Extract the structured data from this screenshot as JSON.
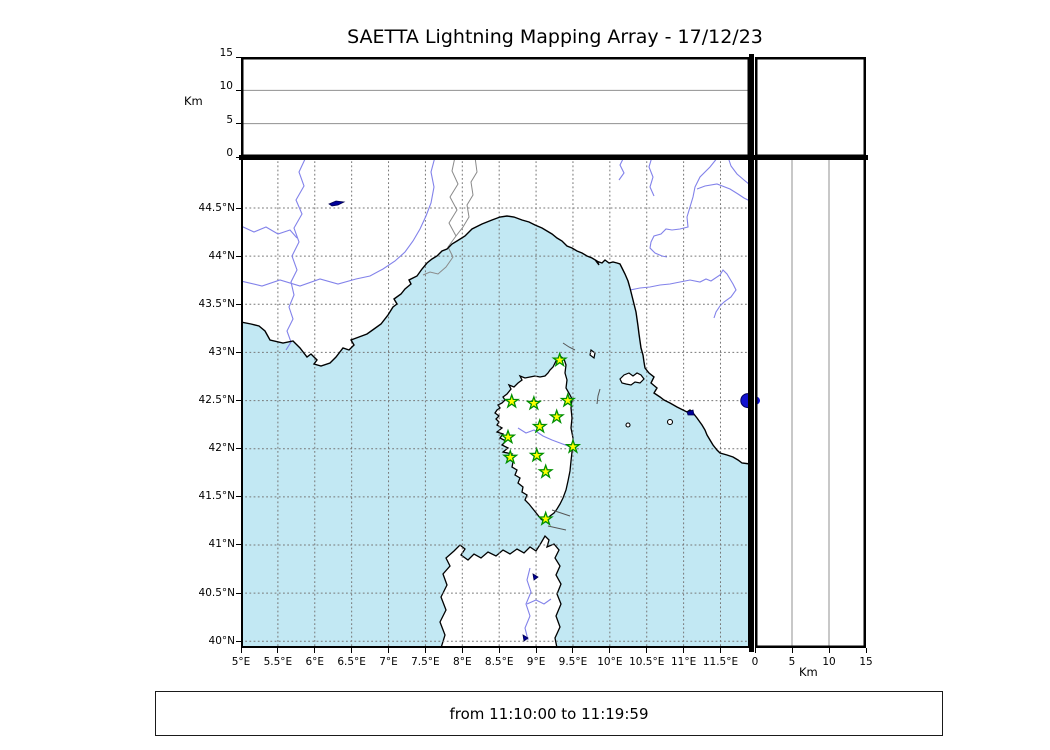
{
  "title": "SAETTA Lightning Mapping Array - 17/12/23",
  "status_bar": {
    "text": "from 11:10:00 to 11:19:59"
  },
  "chart_data": {
    "type": "map",
    "title": "SAETTA Lightning Mapping Array - 17/12/23",
    "description_visible": "Lightning mapping array display: plan map of Corsica region with station markers, altitude-vs-longitude panel on top, altitude-vs-latitude panel on right",
    "map_panel": {
      "lon_range": [
        5.0,
        11.9
      ],
      "lat_range": [
        39.93,
        45.03
      ],
      "grid_step_deg": 0.5,
      "lon_ticks": [
        {
          "v": 5.0,
          "label": "5°E"
        },
        {
          "v": 5.5,
          "label": "5.5°E"
        },
        {
          "v": 6.0,
          "label": "6°E"
        },
        {
          "v": 6.5,
          "label": "6.5°E"
        },
        {
          "v": 7.0,
          "label": "7°E"
        },
        {
          "v": 7.5,
          "label": "7.5°E"
        },
        {
          "v": 8.0,
          "label": "8°E"
        },
        {
          "v": 8.5,
          "label": "8.5°E"
        },
        {
          "v": 9.0,
          "label": "9°E"
        },
        {
          "v": 9.5,
          "label": "9.5°E"
        },
        {
          "v": 10.0,
          "label": "10°E"
        },
        {
          "v": 10.5,
          "label": "10.5°E"
        },
        {
          "v": 11.0,
          "label": "11°E"
        },
        {
          "v": 11.5,
          "label": "11.5°E"
        }
      ],
      "lat_ticks": [
        {
          "v": 44.5,
          "label": "44.5°N"
        },
        {
          "v": 44.0,
          "label": "44°N"
        },
        {
          "v": 43.5,
          "label": "43.5°N"
        },
        {
          "v": 43.0,
          "label": "43°N"
        },
        {
          "v": 42.5,
          "label": "42.5°N"
        },
        {
          "v": 42.0,
          "label": "42°N"
        },
        {
          "v": 41.5,
          "label": "41.5°N"
        },
        {
          "v": 41.0,
          "label": "41°N"
        },
        {
          "v": 40.5,
          "label": "40.5°N"
        },
        {
          "v": 40.0,
          "label": "40°N"
        }
      ]
    },
    "altitude_axis": {
      "label": "Km",
      "range": [
        0,
        15
      ],
      "ticks": [
        0,
        5,
        10,
        15
      ],
      "gridlines": [
        5,
        10
      ]
    },
    "stations": {
      "marker": "star",
      "fill": "#ffff00",
      "edge": "#009000",
      "points": [
        {
          "lon": 9.32,
          "lat": 42.92
        },
        {
          "lon": 8.67,
          "lat": 42.49
        },
        {
          "lon": 8.97,
          "lat": 42.47
        },
        {
          "lon": 9.43,
          "lat": 42.5
        },
        {
          "lon": 9.28,
          "lat": 42.33
        },
        {
          "lon": 9.05,
          "lat": 42.23
        },
        {
          "lon": 8.62,
          "lat": 42.12
        },
        {
          "lon": 9.5,
          "lat": 42.02
        },
        {
          "lon": 8.65,
          "lat": 41.91
        },
        {
          "lon": 9.01,
          "lat": 41.93
        },
        {
          "lon": 9.13,
          "lat": 41.76
        },
        {
          "lon": 9.13,
          "lat": 41.27
        }
      ]
    },
    "lightning_sources": [
      {
        "lon": 11.87,
        "lat": 42.5,
        "alt_km": 0.0,
        "color": "#1212cf"
      }
    ],
    "colors": {
      "sea": "#c2e8f3",
      "land": "#ffffff",
      "river": "#8282ea",
      "country_border": "#8a8a8a",
      "coast": "#000000",
      "grid": "#777777",
      "lake": "#000099",
      "station_fill": "#ffff00",
      "station_edge": "#009000",
      "source_dot": "#1212cf"
    }
  }
}
